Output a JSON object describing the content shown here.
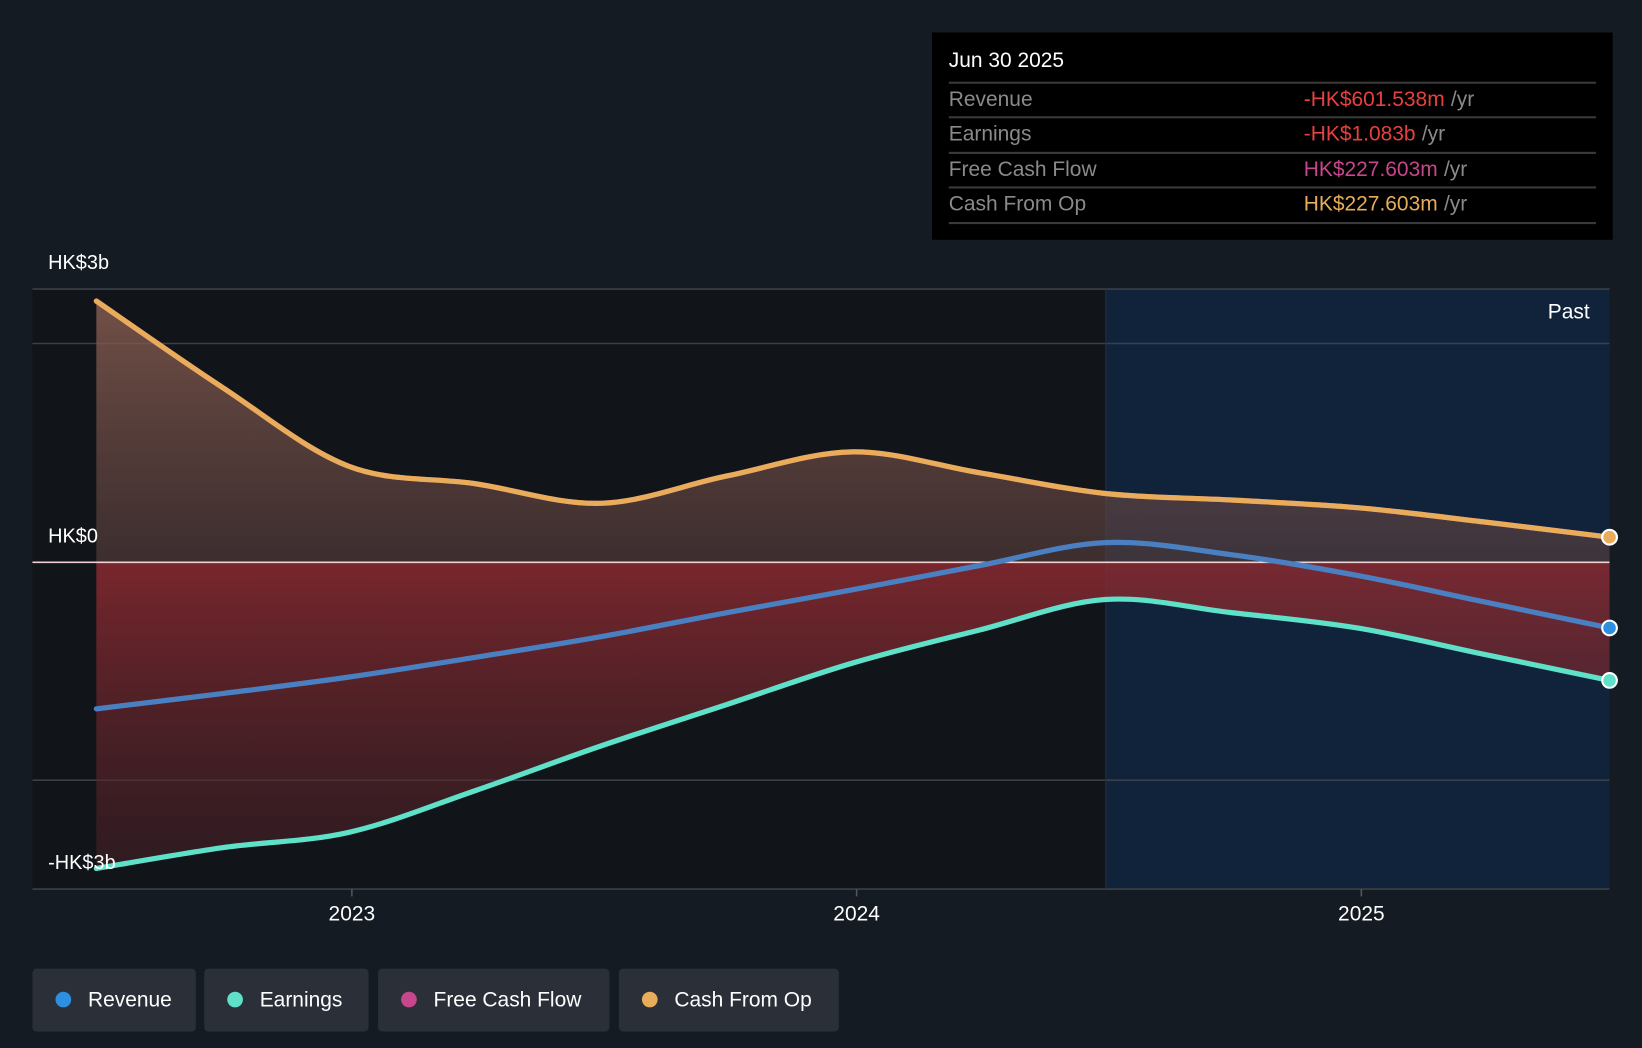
{
  "tooltip": {
    "date": "Jun 30 2025",
    "rows": [
      {
        "label": "Revenue",
        "value": "-HK$601.538m",
        "unit": "/yr",
        "color": "#e5413f"
      },
      {
        "label": "Earnings",
        "value": "-HK$1.083b",
        "unit": "/yr",
        "color": "#e5413f"
      },
      {
        "label": "Free Cash Flow",
        "value": "HK$227.603m",
        "unit": "/yr",
        "color": "#c8478c"
      },
      {
        "label": "Cash From Op",
        "value": "HK$227.603m",
        "unit": "/yr",
        "color": "#e8ac5a"
      }
    ]
  },
  "chart_data": {
    "type": "line",
    "title": "",
    "xlabel": "",
    "ylabel": "",
    "ylim": [
      -3,
      2.5
    ],
    "y_unit": "HK$ billions",
    "y_tick_labels": [
      "HK$3b",
      "HK$0",
      "-HK$3b"
    ],
    "x_tick_labels": [
      "2023",
      "2024",
      "2025"
    ],
    "past_label": "Past",
    "x": [
      "2022-06-30",
      "2022-09-30",
      "2022-12-31",
      "2023-03-31",
      "2023-06-30",
      "2023-09-30",
      "2023-12-31",
      "2024-03-31",
      "2024-06-30",
      "2024-09-30",
      "2024-12-31",
      "2025-03-31",
      "2025-06-30"
    ],
    "series": [
      {
        "name": "Revenue",
        "color": "#4a7fc1",
        "dot": "#2d8fe0",
        "values": [
          -1.34,
          -1.2,
          -1.05,
          -0.87,
          -0.68,
          -0.46,
          -0.25,
          -0.03,
          0.18,
          0.07,
          -0.12,
          -0.36,
          -0.6
        ]
      },
      {
        "name": "Earnings",
        "color": "#5fe0c8",
        "dot": "#5fe0c8",
        "values": [
          -2.8,
          -2.61,
          -2.47,
          -2.09,
          -1.68,
          -1.3,
          -0.92,
          -0.62,
          -0.34,
          -0.46,
          -0.6,
          -0.84,
          -1.08
        ]
      },
      {
        "name": "Free Cash Flow",
        "color": "#c8478c",
        "dot": "#c8478c",
        "values": [
          2.39,
          1.6,
          0.88,
          0.72,
          0.54,
          0.79,
          1.01,
          0.82,
          0.63,
          0.57,
          0.5,
          0.37,
          0.23
        ]
      },
      {
        "name": "Cash From Op",
        "color": "#e8ac5a",
        "dot": "#e8ac5a",
        "values": [
          2.39,
          1.6,
          0.88,
          0.72,
          0.54,
          0.79,
          1.01,
          0.82,
          0.63,
          0.57,
          0.5,
          0.37,
          0.23
        ]
      }
    ]
  },
  "legend": [
    "Revenue",
    "Earnings",
    "Free Cash Flow",
    "Cash From Op"
  ]
}
